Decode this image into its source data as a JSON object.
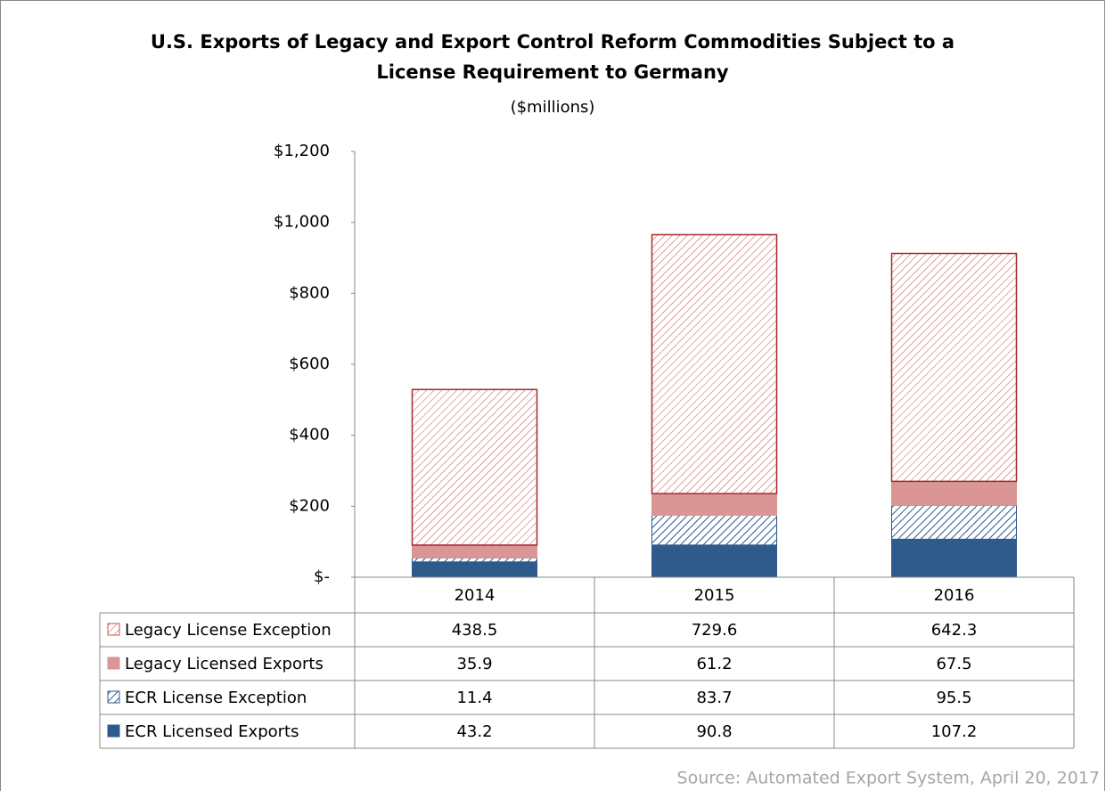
{
  "chart_data": {
    "type": "stacked_bar",
    "title": [
      "U.S. Exports of Legacy and Export Control Reform Commodities Subject to a",
      "License Requirement to Germany"
    ],
    "subtitle": "($millions)",
    "source": "Source: Automated Export System, April 20, 2017",
    "categories": [
      "2014",
      "2015",
      "2016"
    ],
    "series": [
      {
        "name": "Legacy License Exception",
        "color": "#c0504d",
        "pattern": "hatch",
        "values": [
          438.5,
          729.6,
          642.3
        ]
      },
      {
        "name": "Legacy Licensed Exports",
        "color": "#d99694",
        "pattern": "solid",
        "values": [
          35.9,
          61.2,
          67.5
        ]
      },
      {
        "name": "ECR License Exception",
        "color": "#2e5a8c",
        "pattern": "hatch",
        "values": [
          11.4,
          83.7,
          95.5
        ]
      },
      {
        "name": "ECR Licensed Exports",
        "color": "#2e5a8c",
        "pattern": "solid",
        "values": [
          43.2,
          90.8,
          107.2
        ]
      }
    ],
    "ylim": [
      0,
      1200
    ],
    "yticks": [
      {
        "value": 0,
        "label": "$-"
      },
      {
        "value": 200,
        "label": "$200"
      },
      {
        "value": 400,
        "label": "$400"
      },
      {
        "value": 600,
        "label": "$600"
      },
      {
        "value": 800,
        "label": "$800"
      },
      {
        "value": 1000,
        "label": "$1,000"
      },
      {
        "value": 1200,
        "label": "$1,200"
      }
    ],
    "data_table": true
  }
}
